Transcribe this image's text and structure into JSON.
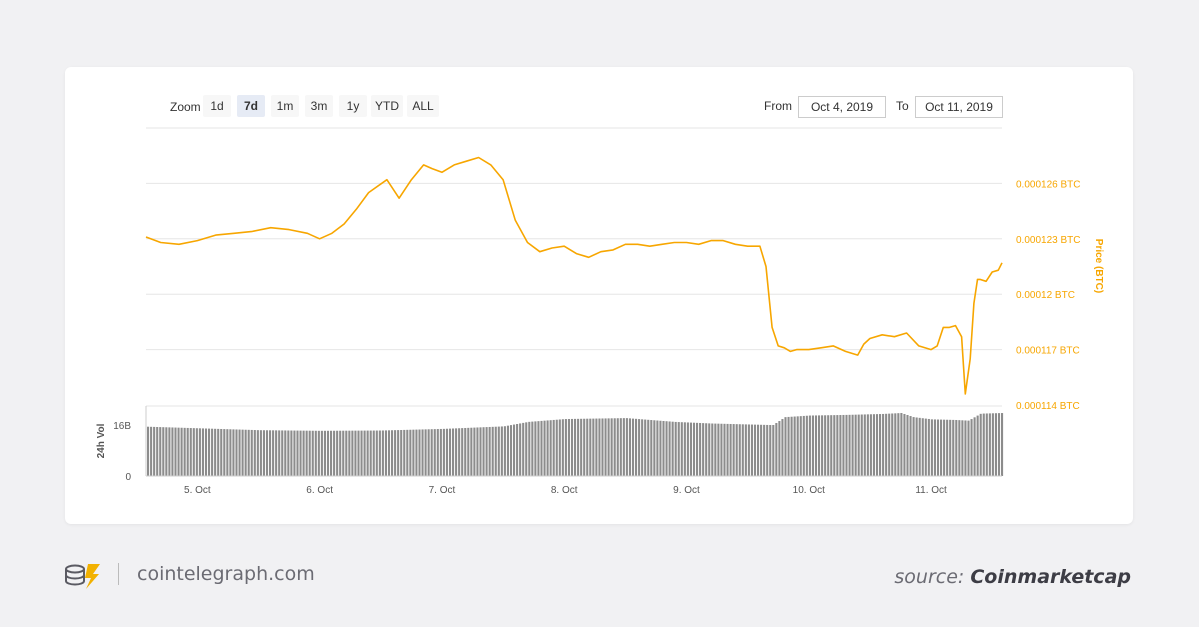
{
  "toolbar": {
    "zoom_label": "Zoom",
    "zoom_buttons": [
      "1d",
      "7d",
      "1m",
      "3m",
      "1y",
      "YTD",
      "ALL"
    ],
    "active_zoom": "7d",
    "from_label": "From",
    "from_value": "Oct 4, 2019",
    "to_label": "To",
    "to_value": "Oct 11, 2019"
  },
  "chart_data": {
    "type": "line",
    "title": "",
    "xlabel": "",
    "ylabel": "Price (BTC)",
    "y2label": "24h Vol",
    "x_ticks": [
      "5. Oct",
      "6. Oct",
      "7. Oct",
      "8. Oct",
      "9. Oct",
      "10. Oct",
      "11. Oct"
    ],
    "y_ticks": [
      "0.000126 BTC",
      "0.000123 BTC",
      "0.00012 BTC",
      "0.000117 BTC",
      "0.000114 BTC"
    ],
    "y_tick_values": [
      0.000126,
      0.000123,
      0.00012,
      0.000117,
      0.000114
    ],
    "ylim": [
      0.000114,
      0.000129
    ],
    "vol_ticks": [
      "16B",
      "0"
    ],
    "vol_tick_values": [
      16,
      0
    ],
    "vol_ylim": [
      0,
      22
    ],
    "xlim": [
      4.58,
      11.58
    ],
    "line_color": "#f7a600",
    "vol_color": "#8c8c8c",
    "series": [
      {
        "name": "Price (BTC)",
        "x": [
          4.58,
          4.7,
          4.85,
          5.0,
          5.15,
          5.3,
          5.45,
          5.6,
          5.75,
          5.9,
          6.0,
          6.1,
          6.2,
          6.3,
          6.4,
          6.55,
          6.65,
          6.75,
          6.85,
          6.92,
          7.0,
          7.1,
          7.2,
          7.3,
          7.4,
          7.5,
          7.6,
          7.7,
          7.8,
          7.9,
          8.0,
          8.1,
          8.2,
          8.3,
          8.4,
          8.5,
          8.6,
          8.7,
          8.8,
          8.9,
          9.0,
          9.1,
          9.2,
          9.3,
          9.4,
          9.5,
          9.6,
          9.65,
          9.7,
          9.75,
          9.8,
          9.85,
          9.9,
          10.0,
          10.1,
          10.2,
          10.3,
          10.4,
          10.45,
          10.5,
          10.6,
          10.7,
          10.8,
          10.9,
          11.0,
          11.05,
          11.1,
          11.15,
          11.2,
          11.25,
          11.28,
          11.32,
          11.35,
          11.38,
          11.4,
          11.45,
          11.5,
          11.55,
          11.58
        ],
        "y": [
          0.0001231,
          0.0001228,
          0.0001227,
          0.0001229,
          0.0001232,
          0.0001233,
          0.0001234,
          0.0001236,
          0.0001235,
          0.0001233,
          0.000123,
          0.0001233,
          0.0001238,
          0.0001246,
          0.0001255,
          0.0001262,
          0.0001252,
          0.0001262,
          0.000127,
          0.0001268,
          0.0001266,
          0.000127,
          0.0001272,
          0.0001274,
          0.000127,
          0.0001262,
          0.000124,
          0.0001228,
          0.0001223,
          0.0001225,
          0.0001226,
          0.0001222,
          0.000122,
          0.0001223,
          0.0001224,
          0.0001227,
          0.0001227,
          0.0001226,
          0.0001227,
          0.0001228,
          0.0001228,
          0.0001227,
          0.0001229,
          0.0001229,
          0.0001227,
          0.0001226,
          0.0001226,
          0.0001215,
          0.0001182,
          0.0001172,
          0.0001171,
          0.0001169,
          0.000117,
          0.000117,
          0.0001171,
          0.0001172,
          0.0001169,
          0.0001167,
          0.0001173,
          0.0001176,
          0.0001178,
          0.0001177,
          0.0001179,
          0.0001172,
          0.000117,
          0.0001172,
          0.0001182,
          0.0001182,
          0.0001183,
          0.0001177,
          0.0001146,
          0.0001165,
          0.0001195,
          0.0001208,
          0.0001208,
          0.0001207,
          0.0001212,
          0.0001213,
          0.0001217
        ]
      }
    ],
    "volume": {
      "x": [
        4.58,
        5.0,
        5.5,
        6.0,
        6.5,
        7.0,
        7.5,
        7.7,
        8.0,
        8.5,
        8.9,
        9.2,
        9.5,
        9.7,
        9.8,
        10.0,
        10.3,
        10.6,
        10.75,
        10.85,
        11.0,
        11.2,
        11.3,
        11.4,
        11.58
      ],
      "values": [
        15.5,
        15.0,
        14.4,
        14.2,
        14.3,
        14.8,
        15.6,
        17.0,
        17.9,
        18.2,
        17.0,
        16.5,
        16.2,
        16.0,
        18.5,
        19.0,
        19.2,
        19.5,
        19.8,
        18.5,
        17.8,
        17.6,
        17.4,
        19.6,
        19.8
      ]
    }
  },
  "footer": {
    "site": "cointelegraph.com",
    "source_prefix": "source:",
    "source_name": "Coinmarketcap"
  }
}
